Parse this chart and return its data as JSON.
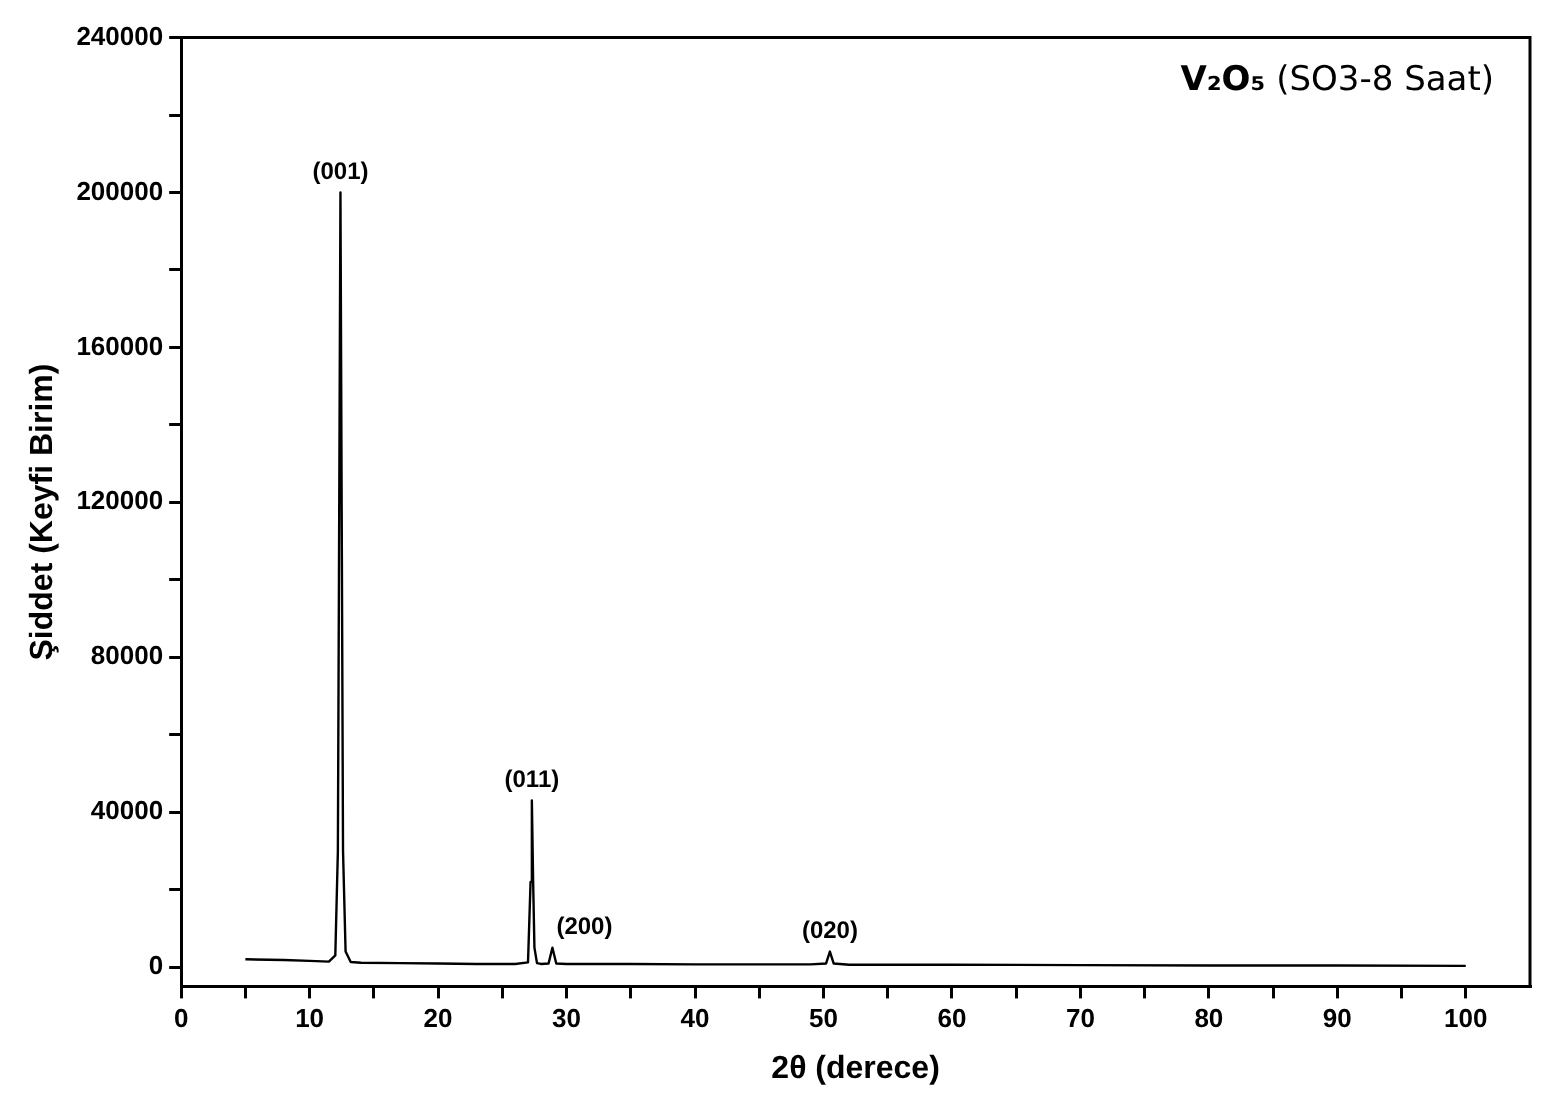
{
  "chart_data": {
    "type": "line",
    "title": "V₂O₅ (SO3-8 Saat)",
    "xlabel": "2θ (derece)",
    "ylabel": "Şiddet (Keyfi Birim)",
    "xlim": [
      0,
      105
    ],
    "ylim": [
      -5000,
      240000
    ],
    "xticks": [
      0,
      {
        "value": 5,
        "label": null
      },
      10,
      {
        "value": 15,
        "label": null
      },
      20,
      {
        "value": 25,
        "label": null
      },
      30,
      {
        "value": 35,
        "label": null
      },
      40,
      {
        "value": 45,
        "label": null
      },
      50,
      {
        "value": 55,
        "label": null
      },
      60,
      {
        "value": 65,
        "label": null
      },
      70,
      {
        "value": 75,
        "label": null
      },
      80,
      {
        "value": 85,
        "label": null
      },
      90,
      {
        "value": 95,
        "label": null
      },
      100
    ],
    "yticks": [
      0,
      {
        "value": 20000,
        "label": null
      },
      40000,
      {
        "value": 60000,
        "label": null
      },
      80000,
      {
        "value": 100000,
        "label": null
      },
      120000,
      {
        "value": 140000,
        "label": null
      },
      160000,
      {
        "value": 180000,
        "label": null
      },
      200000,
      {
        "value": 220000,
        "label": null
      },
      240000
    ],
    "series": [
      {
        "color": "#000000",
        "x": [
          5,
          8,
          10,
          11.5,
          12.0,
          12.2,
          12.4,
          12.6,
          12.8,
          13.2,
          14,
          17,
          20,
          23,
          26,
          27.0,
          27.2,
          27.3,
          27.4,
          27.5,
          27.7,
          28.0,
          28.6,
          28.9,
          29.2,
          30,
          35,
          40,
          45,
          49,
          50.2,
          50.5,
          50.8,
          52,
          60,
          70,
          80,
          90,
          100
        ],
        "values": [
          2000,
          1800,
          1600,
          1400,
          3000,
          30000,
          200000,
          30000,
          4000,
          1300,
          1100,
          1000,
          900,
          800,
          800,
          1200,
          22000,
          43000,
          22000,
          5000,
          1000,
          800,
          900,
          5000,
          900,
          800,
          800,
          700,
          700,
          700,
          900,
          4000,
          900,
          600,
          600,
          500,
          400,
          400,
          300
        ]
      }
    ],
    "grid": false,
    "legend": false,
    "marker": "none",
    "line_style": "solid",
    "annotations": [
      {
        "text": "(001)",
        "x": 12.4,
        "y": 200000
      },
      {
        "text": "(011)",
        "x": 27.3,
        "y": 43000
      },
      {
        "text": "(200)",
        "x": 28.9,
        "y": 5000
      },
      {
        "text": "(020)",
        "x": 50.5,
        "y": 4000
      }
    ]
  }
}
